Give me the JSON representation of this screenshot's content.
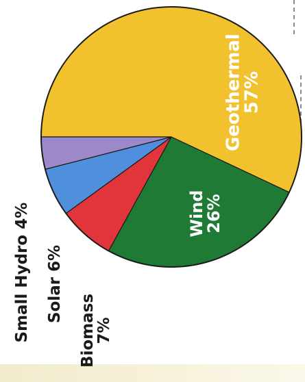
{
  "chart_data": {
    "type": "pie",
    "title": "",
    "slices": [
      {
        "label": "Geothermal",
        "value": 57,
        "value_label": "57%",
        "color": "#f2c12e"
      },
      {
        "label": "Wind",
        "value": 26,
        "value_label": "26%",
        "color": "#1e7a35"
      },
      {
        "label": "Biomass",
        "value": 7,
        "value_label": "7%",
        "color": "#e0353a"
      },
      {
        "label": "Solar",
        "value": 6,
        "value_label": "6%",
        "color": "#4f8fdc"
      },
      {
        "label": "Small Hydro",
        "value": 4,
        "value_label": "4%",
        "color": "#9b89c9"
      }
    ],
    "labels_inside": [
      "Geothermal",
      "Wind"
    ],
    "labels_outside": [
      "Biomass",
      "Solar",
      "Small Hydro"
    ],
    "text_orientation": "rotated-90-counterclockwise",
    "legend": "none"
  }
}
